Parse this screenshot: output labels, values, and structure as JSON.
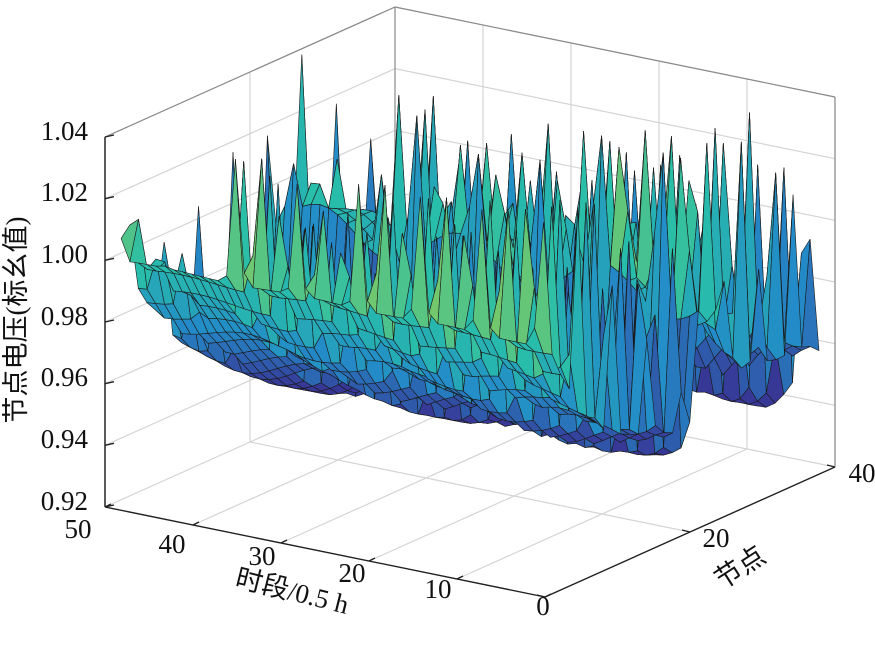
{
  "chart_data": {
    "type": "surface",
    "zlabel": "节点电压(标幺值)",
    "xlabel": "时段/0.5 h",
    "ylabel": "节点",
    "zlim": [
      0.92,
      1.04
    ],
    "z_ticks": [
      "0.92",
      "0.94",
      "0.96",
      "0.98",
      "1.00",
      "1.02",
      "1.04"
    ],
    "x_ticks": [
      "0",
      "10",
      "20",
      "30",
      "40",
      "50"
    ],
    "y_ticks": [
      "20",
      "40"
    ],
    "time_periods": 48,
    "nodes": 33,
    "colormap": "parula",
    "grid": true,
    "series": [
      {
        "name": "",
        "node_voltages_sample": [
          1.0,
          0.997,
          0.99,
          0.985,
          0.98,
          0.975,
          0.972,
          0.968,
          0.965,
          0.962,
          0.96,
          0.958,
          0.957,
          0.956,
          0.955,
          0.955,
          0.954,
          0.954,
          0.998,
          0.996,
          0.995,
          0.994,
          0.985,
          0.98,
          0.978,
          0.974,
          0.972,
          0.968,
          0.965,
          0.964,
          0.962,
          0.961,
          0.96
        ],
        "time_peak_voltages": [
          1.04,
          1.03,
          1.03,
          1.03,
          1.02,
          1.02,
          1.03,
          1.0,
          1.01
        ]
      }
    ]
  }
}
